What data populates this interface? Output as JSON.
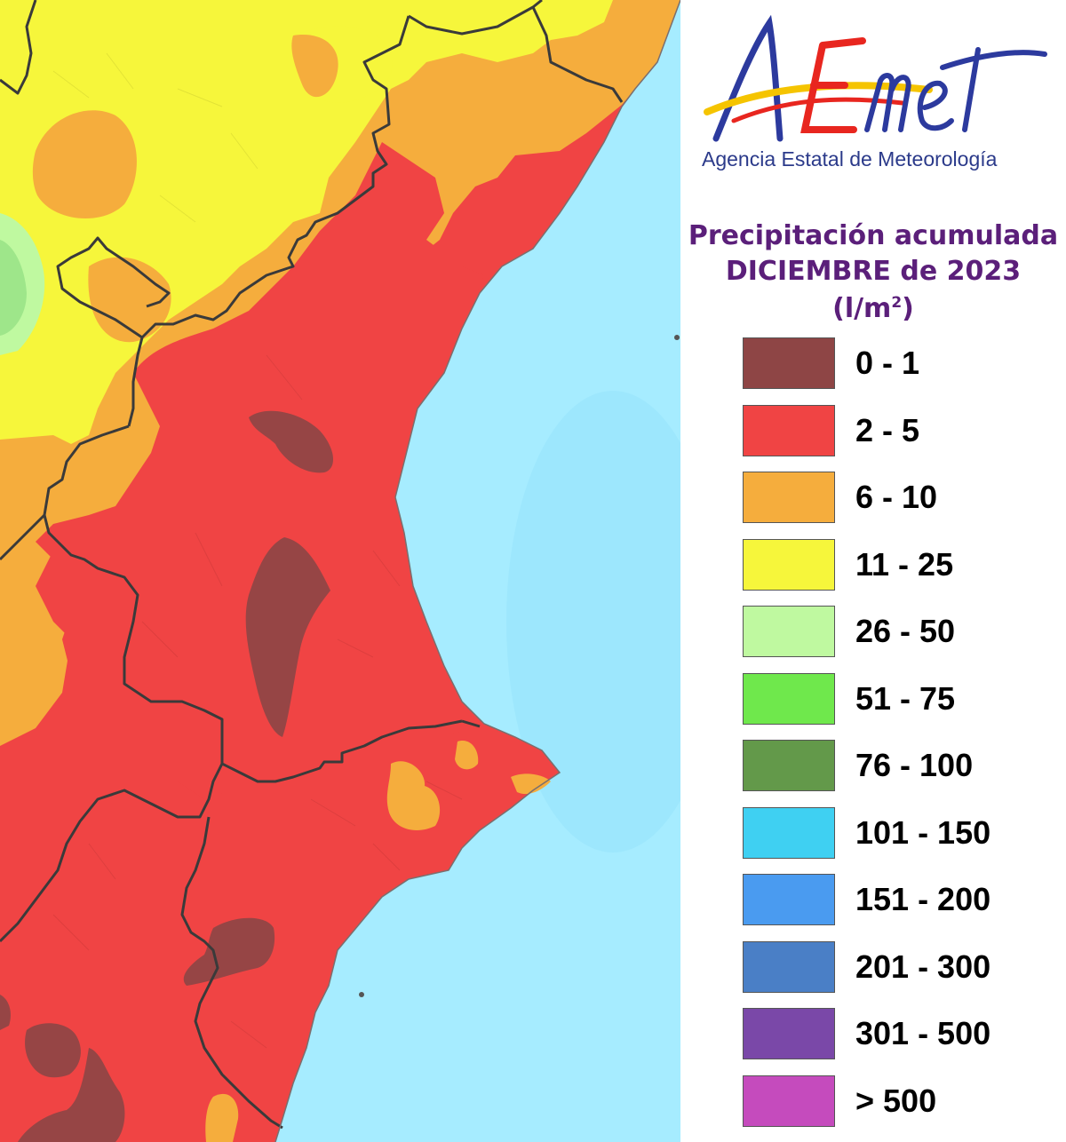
{
  "logo": {
    "wordmark": "AEMet",
    "subtitle": "Agencia Estatal de Meteorología"
  },
  "title": {
    "line1": "Precipitación acumulada",
    "line2": "DICIEMBRE de 2023",
    "unit_base": "(l/m",
    "unit_exp": "2",
    "unit_close": ")"
  },
  "legend": [
    {
      "label": "0 - 1",
      "color": "#8e4545"
    },
    {
      "label": "2 - 5",
      "color": "#f04444"
    },
    {
      "label": "6 - 10",
      "color": "#f5ad3d"
    },
    {
      "label": "11 - 25",
      "color": "#f6f63b"
    },
    {
      "label": "26 - 50",
      "color": "#bff9a0"
    },
    {
      "label": "51 - 75",
      "color": "#6fe84c"
    },
    {
      "label": "76 - 100",
      "color": "#63994a"
    },
    {
      "label": "101 - 150",
      "color": "#3fd0f2"
    },
    {
      "label": "151 - 200",
      "color": "#4a9bf0"
    },
    {
      "label": "201 - 300",
      "color": "#4a7fc6"
    },
    {
      "label": "301 - 500",
      "color": "#7a48a8"
    },
    {
      "label": "> 500",
      "color": "#c54bbd"
    }
  ],
  "colors": {
    "sea": "#a6ecff",
    "border": "#3a3a3a",
    "logo_blue": "#2c3a9e",
    "logo_red": "#e8261f",
    "logo_yellow": "#f5c400"
  }
}
